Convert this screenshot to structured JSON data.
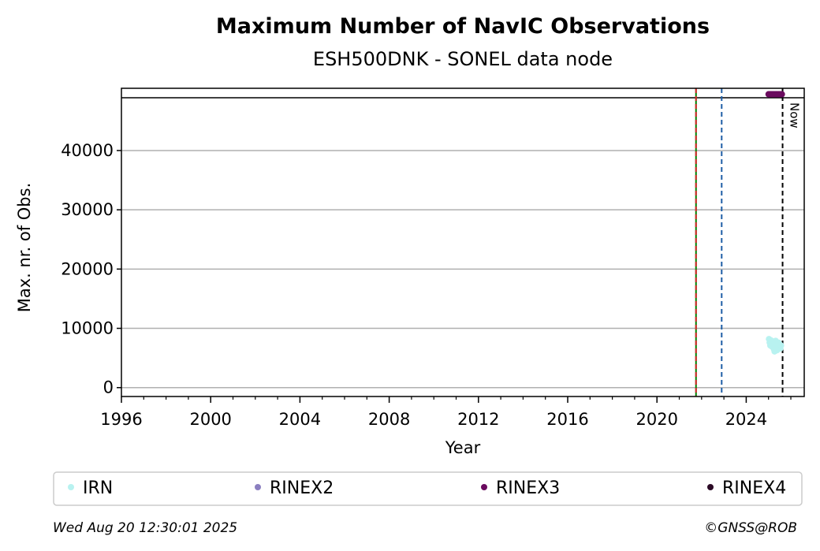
{
  "chart_data": {
    "type": "scatter",
    "title": "Maximum Number of NavIC Observations",
    "subtitle": "ESH500DNK - SONEL data node",
    "xlabel": "Year",
    "ylabel": "Max. nr. of Obs.",
    "xlim": [
      1996,
      2026.6
    ],
    "ylim": [
      -1500,
      50500
    ],
    "xticks": [
      1996,
      2000,
      2004,
      2008,
      2012,
      2016,
      2020,
      2024
    ],
    "yticks": [
      0,
      10000,
      20000,
      30000,
      40000
    ],
    "grid": "horizontal",
    "reference_line_y": 48900,
    "vlines": [
      {
        "x": 2021.75,
        "style": "solid",
        "color": "#008000"
      },
      {
        "x": 2021.75,
        "style": "dashed",
        "color": "#d62728"
      },
      {
        "x": 2022.9,
        "style": "dashed",
        "color": "#1f5fa6"
      },
      {
        "x": 2025.63,
        "style": "dashed",
        "color": "#000000",
        "label": "Now"
      }
    ],
    "series": [
      {
        "name": "IRN",
        "color": "#b8f2f0",
        "points": [
          [
            2025.02,
            8200
          ],
          [
            2025.05,
            7600
          ],
          [
            2025.08,
            7100
          ],
          [
            2025.1,
            8000
          ],
          [
            2025.13,
            7400
          ],
          [
            2025.16,
            6900
          ],
          [
            2025.19,
            7800
          ],
          [
            2025.21,
            7300
          ],
          [
            2025.24,
            6500
          ],
          [
            2025.27,
            6100
          ],
          [
            2025.29,
            7200
          ],
          [
            2025.32,
            7900
          ],
          [
            2025.35,
            6700
          ],
          [
            2025.38,
            6300
          ],
          [
            2025.41,
            7000
          ],
          [
            2025.44,
            7600
          ],
          [
            2025.47,
            6800
          ],
          [
            2025.5,
            7300
          ],
          [
            2025.53,
            6600
          ],
          [
            2025.56,
            7100
          ]
        ]
      },
      {
        "name": "RINEX3",
        "color": "#6a0a5e",
        "points": [
          [
            2025.0,
            49500
          ],
          [
            2025.05,
            49500
          ],
          [
            2025.1,
            49500
          ],
          [
            2025.15,
            49500
          ],
          [
            2025.2,
            49500
          ],
          [
            2025.25,
            49500
          ],
          [
            2025.3,
            49500
          ],
          [
            2025.35,
            49500
          ],
          [
            2025.4,
            49500
          ],
          [
            2025.45,
            49500
          ],
          [
            2025.5,
            49500
          ],
          [
            2025.55,
            49500
          ],
          [
            2025.6,
            49500
          ]
        ]
      }
    ],
    "legend": [
      {
        "label": "IRN",
        "color": "#b8f2f0"
      },
      {
        "label": "RINEX2",
        "color": "#8b7fc0"
      },
      {
        "label": "RINEX3",
        "color": "#6a0a5e"
      },
      {
        "label": "RINEX4",
        "color": "#2b0a26"
      }
    ],
    "legend_position": "bottom"
  },
  "footer": {
    "timestamp": "Wed Aug 20 12:30:01 2025",
    "credit": "©GNSS@ROB"
  }
}
